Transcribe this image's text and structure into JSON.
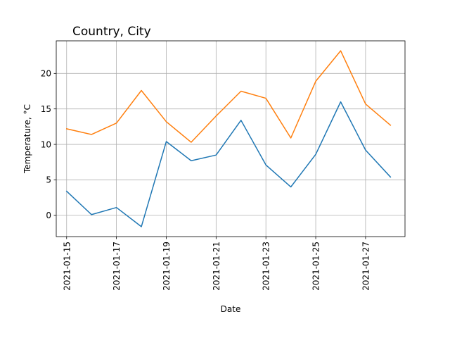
{
  "chart_data": {
    "type": "line",
    "title": "Country, City",
    "xlabel": "Date",
    "ylabel": "Temperature, °C",
    "grid": true,
    "x": [
      "2021-01-15",
      "2021-01-16",
      "2021-01-17",
      "2021-01-18",
      "2021-01-19",
      "2021-01-20",
      "2021-01-21",
      "2021-01-22",
      "2021-01-23",
      "2021-01-24",
      "2021-01-25",
      "2021-01-26",
      "2021-01-27",
      "2021-01-28"
    ],
    "xticks": [
      "2021-01-15",
      "2021-01-17",
      "2021-01-19",
      "2021-01-21",
      "2021-01-23",
      "2021-01-25",
      "2021-01-27"
    ],
    "yticks": [
      0,
      5,
      10,
      15,
      20
    ],
    "xlim": [
      "2021-01-14T14:00",
      "2021-01-28T14:00"
    ],
    "ylim": [
      -3,
      24.6
    ],
    "series": [
      {
        "color": "#1f77b4",
        "values": [
          3.4,
          0.1,
          1.1,
          -1.6,
          10.4,
          7.7,
          8.5,
          13.4,
          7.1,
          4.0,
          8.6,
          16.0,
          9.2,
          5.4
        ]
      },
      {
        "color": "#ff7f0e",
        "values": [
          12.2,
          11.4,
          13.0,
          17.6,
          13.2,
          10.3,
          14.0,
          17.5,
          16.5,
          10.9,
          18.9,
          23.2,
          15.7,
          12.7
        ]
      }
    ]
  }
}
